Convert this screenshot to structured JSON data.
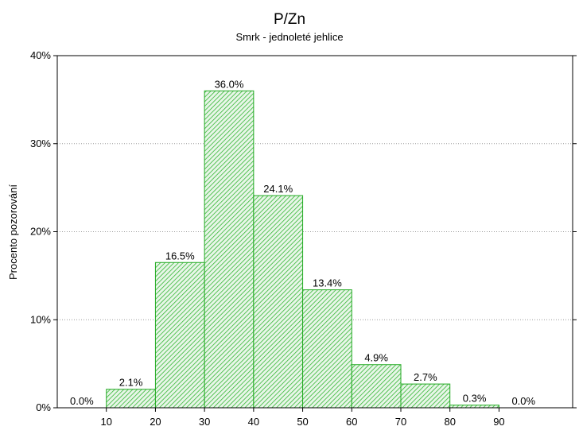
{
  "chart_data": {
    "type": "bar",
    "title": "P/Zn",
    "subtitle": "Smrk - jednoleté jehlice",
    "xlabel": "",
    "ylabel": "Procento pozorování",
    "xlim": [
      0,
      105
    ],
    "ylim": [
      0,
      40
    ],
    "x_ticks": [
      "10",
      "20",
      "30",
      "40",
      "50",
      "60",
      "70",
      "80",
      "90"
    ],
    "y_ticks": [
      "0%",
      "10%",
      "20%",
      "30%",
      "40%"
    ],
    "bins": [
      {
        "start": 0,
        "end": 10,
        "value": 0.0,
        "label": "0.0%"
      },
      {
        "start": 10,
        "end": 20,
        "value": 2.1,
        "label": "2.1%"
      },
      {
        "start": 20,
        "end": 30,
        "value": 16.5,
        "label": "16.5%"
      },
      {
        "start": 30,
        "end": 40,
        "value": 36.0,
        "label": "36.0%"
      },
      {
        "start": 40,
        "end": 50,
        "value": 24.1,
        "label": "24.1%"
      },
      {
        "start": 50,
        "end": 60,
        "value": 13.4,
        "label": "13.4%"
      },
      {
        "start": 60,
        "end": 70,
        "value": 4.9,
        "label": "4.9%"
      },
      {
        "start": 70,
        "end": 80,
        "value": 2.7,
        "label": "2.7%"
      },
      {
        "start": 80,
        "end": 90,
        "value": 0.3,
        "label": "0.3%"
      },
      {
        "start": 90,
        "end": 100,
        "value": 0.0,
        "label": "0.0%"
      }
    ],
    "grid": true,
    "bar_color": "#22aa22",
    "bar_hatch_color": "#33b533",
    "bar_fill_color": "#e8f6e8"
  }
}
